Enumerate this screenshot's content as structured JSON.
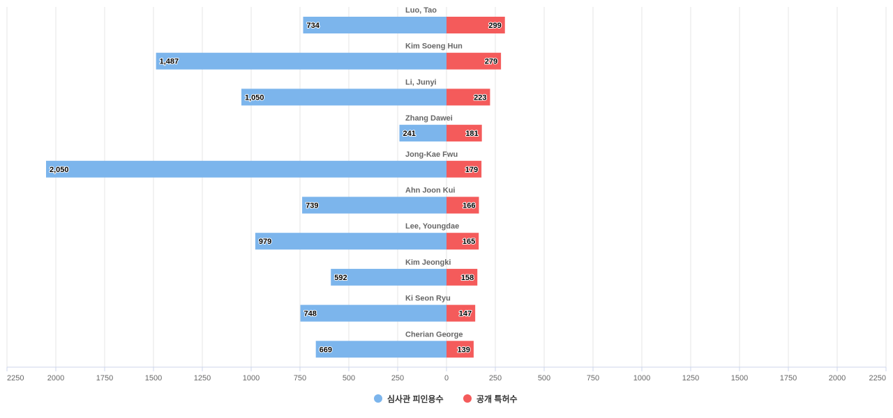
{
  "chart_data": {
    "type": "bar",
    "orientation": "horizontal-diverging",
    "categories": [
      "Luo, Tao",
      "Kim Soeng Hun",
      "Li, Junyi",
      "Zhang Dawei",
      "Jong-Kae Fwu",
      "Ahn Joon Kui",
      "Lee, Youngdae",
      "Kim Jeongki",
      "Ki Seon Ryu",
      "Cherian George"
    ],
    "series": [
      {
        "name": "심사관 피인용수",
        "color": "#7cb5ec",
        "side": "left",
        "values": [
          734,
          1487,
          1050,
          241,
          2050,
          739,
          979,
          592,
          748,
          669
        ]
      },
      {
        "name": "공개 특허수",
        "color": "#f45b5b",
        "side": "right",
        "values": [
          299,
          279,
          223,
          181,
          179,
          166,
          165,
          158,
          147,
          139
        ]
      }
    ],
    "xlim": [
      -2250,
      2250
    ],
    "ticks": [
      2250,
      2000,
      1750,
      1500,
      1250,
      1000,
      750,
      500,
      250,
      0,
      250,
      500,
      750,
      1000,
      1250,
      1500,
      1750,
      2000,
      2250
    ],
    "grid": true,
    "legend_position": "bottom-center"
  }
}
